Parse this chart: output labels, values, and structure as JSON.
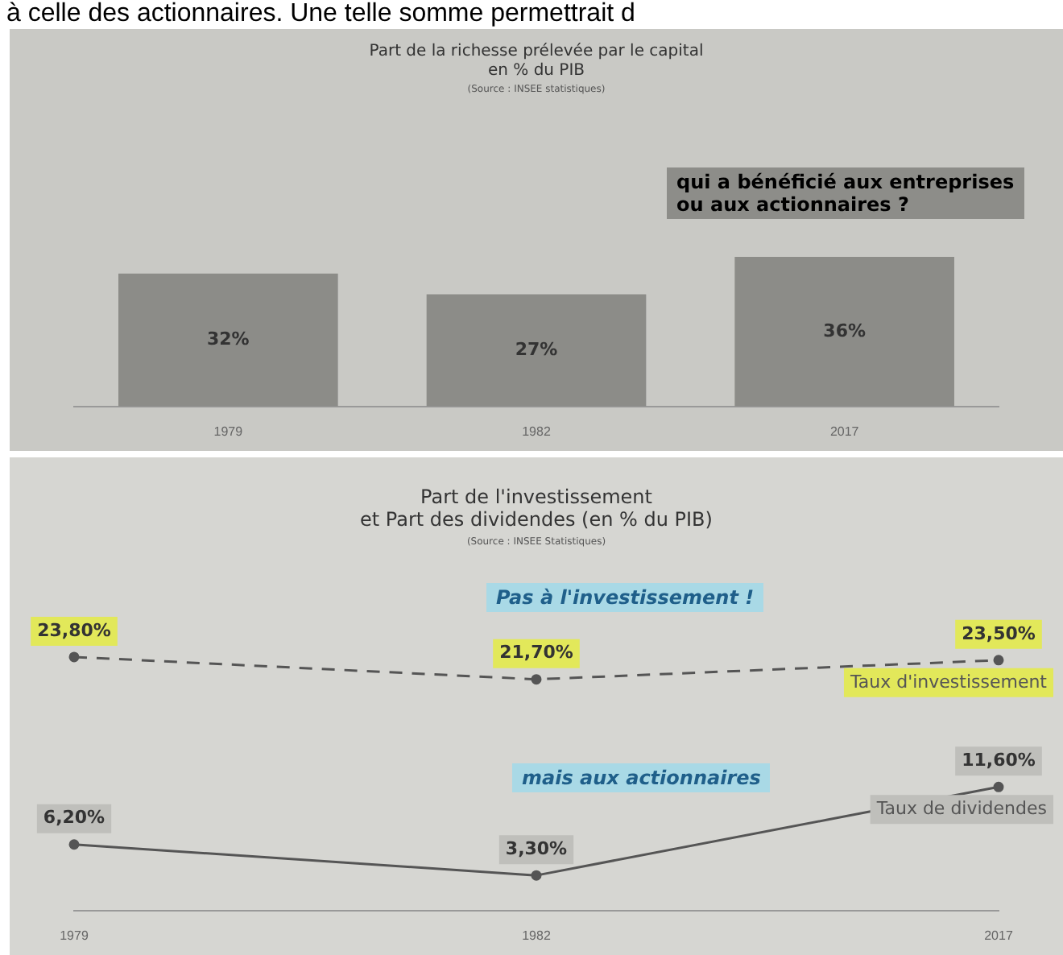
{
  "chart_data": [
    {
      "type": "bar",
      "title": "Part de la richesse prélevée par le capital\nen % du PIB",
      "subtitle": "(Source : INSEE statistiques)",
      "categories": [
        "1979",
        "1982",
        "2017"
      ],
      "values": [
        32,
        27,
        36
      ],
      "color": "#8c8c88",
      "value_labels": [
        "32%",
        "27%",
        "36%"
      ],
      "annotations": [
        "qui a bénéficié aux entreprises\nou aux actionnaires ?",
        "à celle des actionnaires. Une telle somme permettrait d"
      ]
    },
    {
      "type": "line",
      "title": "Part de l'investissement\net Part des dividendes (en % du PIB)",
      "subtitle": "(Source : INSEE Statistiques)",
      "categories": [
        "1979",
        "1982",
        "2017"
      ],
      "marker": "circle",
      "series": [
        {
          "name": "Taux d'investissement",
          "color": "#555555",
          "line_style": "dashed",
          "values": [
            23.8,
            21.7,
            23.5
          ],
          "value_labels": [
            "23,80%",
            "21,70%",
            "23,50%"
          ]
        },
        {
          "name": "Taux de dividendes",
          "color": "#555555",
          "line_style": "solid",
          "values": [
            6.2,
            3.3,
            11.6
          ],
          "value_labels": [
            "6,20%",
            "3,30%",
            "11,60%"
          ]
        }
      ],
      "annotations": [
        "Pas à l'investissement !",
        "mais aux actionnaires"
      ]
    }
  ]
}
